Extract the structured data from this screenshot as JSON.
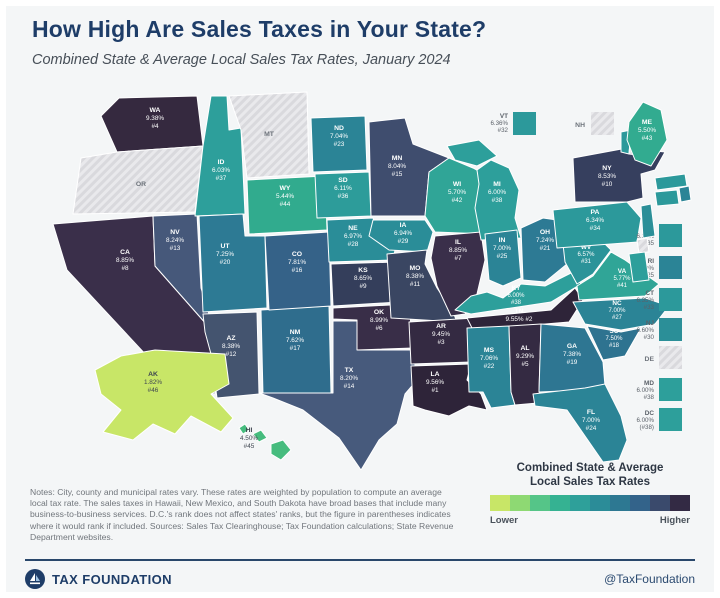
{
  "title": "How High Are Sales Taxes in Your State?",
  "subtitle": "Combined State & Average Local Sales Tax Rates, January 2024",
  "notes": "Notes: City, county and municipal rates vary. These rates are weighted by population to compute an average local tax rate. The sales taxes in Hawaii, New Mexico, and South Dakota have broad bases that include many business-to-business services. D.C.'s rank does not affect states' ranks, but the figure in parentheses indicates where it would rank if included. Sources: Sales Tax Clearinghouse; Tax Foundation calculations; State Revenue Department websites.",
  "legend": {
    "title_line1": "Combined State & Average",
    "title_line2": "Local Sales Tax Rates",
    "lower_label": "Lower",
    "higher_label": "Higher",
    "ramp": [
      "#c8e667",
      "#8ed973",
      "#55c588",
      "#35b292",
      "#2ea09a",
      "#2b8c98",
      "#2d7892",
      "#33638a",
      "#3a4a6c",
      "#332a44"
    ]
  },
  "footer": {
    "brand": "TAX FOUNDATION",
    "handle": "@TaxFoundation"
  },
  "chart_data": {
    "type": "choropleth",
    "title": "Combined State & Average Local Sales Tax Rates, January 2024",
    "unit": "%",
    "no_tax_fill_note": "OR, MT, NH, DE have no state or local sales tax (hatched)",
    "states": [
      {
        "abbr": "WA",
        "rate": "9.38%",
        "rank": "#4",
        "color": "#35293f"
      },
      {
        "abbr": "OR",
        "rate": null,
        "rank": null,
        "no_tax": true
      },
      {
        "abbr": "CA",
        "rate": "8.85%",
        "rank": "#8",
        "color": "#3a2f4a"
      },
      {
        "abbr": "NV",
        "rate": "8.24%",
        "rank": "#13",
        "color": "#46587a"
      },
      {
        "abbr": "ID",
        "rate": "6.03%",
        "rank": "#37",
        "color": "#2d9f9b"
      },
      {
        "abbr": "MT",
        "rate": null,
        "rank": null,
        "no_tax": true
      },
      {
        "abbr": "WY",
        "rate": "5.44%",
        "rank": "#44",
        "color": "#31ab8e"
      },
      {
        "abbr": "UT",
        "rate": "7.25%",
        "rank": "#20",
        "color": "#2d7a94"
      },
      {
        "abbr": "AZ",
        "rate": "8.38%",
        "rank": "#12",
        "color": "#44546f"
      },
      {
        "abbr": "NM",
        "rate": "7.62%",
        "rank": "#17",
        "color": "#2f6d8d"
      },
      {
        "abbr": "CO",
        "rate": "7.81%",
        "rank": "#16",
        "color": "#356288"
      },
      {
        "abbr": "ND",
        "rate": "7.04%",
        "rank": "#23",
        "color": "#2b8496"
      },
      {
        "abbr": "SD",
        "rate": "6.11%",
        "rank": "#36",
        "color": "#2d9c9a"
      },
      {
        "abbr": "NE",
        "rate": "6.97%",
        "rank": "#28",
        "color": "#2a8d98"
      },
      {
        "abbr": "KS",
        "rate": "8.65%",
        "rank": "#9",
        "color": "#343e5b"
      },
      {
        "abbr": "OK",
        "rate": "8.99%",
        "rank": "#6",
        "color": "#392e48"
      },
      {
        "abbr": "TX",
        "rate": "8.20%",
        "rank": "#14",
        "color": "#475a7c"
      },
      {
        "abbr": "MN",
        "rate": "8.04%",
        "rank": "#15",
        "color": "#3f4d6e"
      },
      {
        "abbr": "IA",
        "rate": "6.94%",
        "rank": "#29",
        "color": "#2a8d98"
      },
      {
        "abbr": "MO",
        "rate": "8.38%",
        "rank": "#11",
        "color": "#3a4662"
      },
      {
        "abbr": "AR",
        "rate": "9.45%",
        "rank": "#3",
        "color": "#342a42"
      },
      {
        "abbr": "LA",
        "rate": "9.56%",
        "rank": "#1",
        "color": "#2e2439"
      },
      {
        "abbr": "WI",
        "rate": "5.70%",
        "rank": "#42",
        "color": "#30a597"
      },
      {
        "abbr": "IL",
        "rate": "8.85%",
        "rank": "#7",
        "color": "#3a2f4a"
      },
      {
        "abbr": "MI",
        "rate": "6.00%",
        "rank": "#38",
        "color": "#2d9f9b"
      },
      {
        "abbr": "IN",
        "rate": "7.00%",
        "rank": "#25",
        "color": "#2b8496"
      },
      {
        "abbr": "OH",
        "rate": "7.24%",
        "rank": "#21",
        "color": "#2d7a94"
      },
      {
        "abbr": "KY",
        "rate": "6.00%",
        "rank": "#38",
        "color": "#2d9f9b"
      },
      {
        "abbr": "TN",
        "rate": "9.55%",
        "rank": "#2",
        "color": "#2e2439"
      },
      {
        "abbr": "MS",
        "rate": "7.06%",
        "rank": "#22",
        "color": "#2b8496"
      },
      {
        "abbr": "AL",
        "rate": "9.29%",
        "rank": "#5",
        "color": "#342a42"
      },
      {
        "abbr": "GA",
        "rate": "7.38%",
        "rank": "#19",
        "color": "#2e7692"
      },
      {
        "abbr": "FL",
        "rate": "7.00%",
        "rank": "#24",
        "color": "#2b8496"
      },
      {
        "abbr": "SC",
        "rate": "7.50%",
        "rank": "#18",
        "color": "#2e7390"
      },
      {
        "abbr": "NC",
        "rate": "7.00%",
        "rank": "#27",
        "color": "#2b8496"
      },
      {
        "abbr": "VA",
        "rate": "5.77%",
        "rank": "#41",
        "color": "#30a597"
      },
      {
        "abbr": "WV",
        "rate": "6.57%",
        "rank": "#31",
        "color": "#2b9399"
      },
      {
        "abbr": "PA",
        "rate": "6.34%",
        "rank": "#34",
        "color": "#2c999b"
      },
      {
        "abbr": "NY",
        "rate": "8.53%",
        "rank": "#10",
        "color": "#363f5e"
      },
      {
        "abbr": "VT",
        "rate": "6.36%",
        "rank": "#32",
        "color": "#2c999b"
      },
      {
        "abbr": "NH",
        "rate": null,
        "rank": null,
        "no_tax": true
      },
      {
        "abbr": "ME",
        "rate": "5.50%",
        "rank": "#43",
        "color": "#32ab90"
      },
      {
        "abbr": "MA",
        "rate": "6.25%",
        "rank": "#35",
        "color": "#2c999b"
      },
      {
        "abbr": "RI",
        "rate": "7.00%",
        "rank": "#25",
        "color": "#2b8496"
      },
      {
        "abbr": "CT",
        "rate": "6.35%",
        "rank": "#33",
        "color": "#2c999b"
      },
      {
        "abbr": "NJ",
        "rate": "6.60%",
        "rank": "#30",
        "color": "#2b8f98"
      },
      {
        "abbr": "DE",
        "rate": null,
        "rank": null,
        "no_tax": true
      },
      {
        "abbr": "MD",
        "rate": "6.00%",
        "rank": "#38",
        "color": "#2d9f9b"
      },
      {
        "abbr": "DC",
        "rate": "6.00%",
        "rank": "(#38)",
        "color": "#2d9f9b"
      },
      {
        "abbr": "AK",
        "rate": "1.82%",
        "rank": "#46",
        "color": "#c8e667"
      },
      {
        "abbr": "HI",
        "rate": "4.50%",
        "rank": "#45",
        "color": "#46bc7e"
      }
    ]
  }
}
